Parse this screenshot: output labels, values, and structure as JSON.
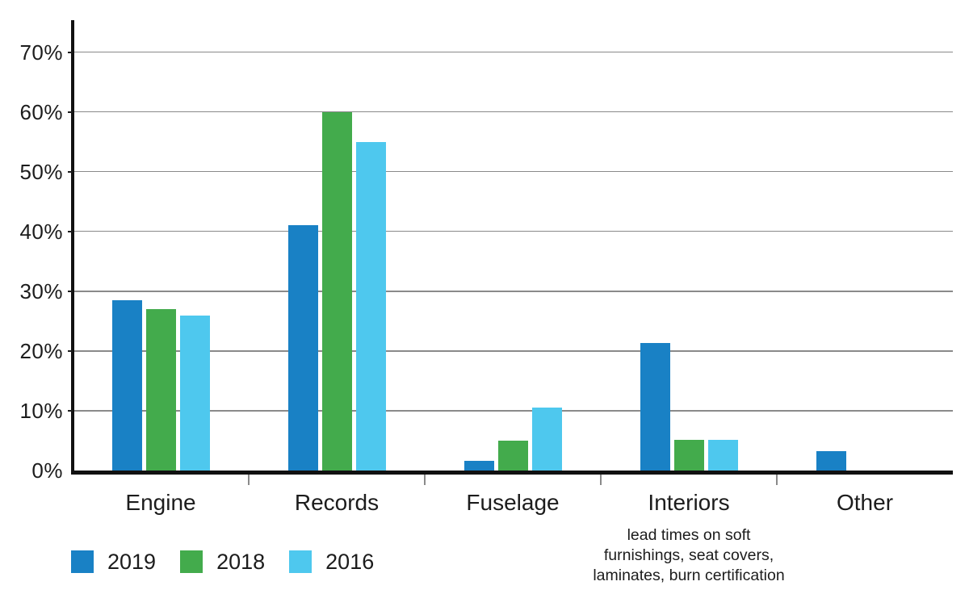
{
  "chart_data": {
    "type": "bar",
    "title": "",
    "xlabel": "",
    "ylabel": "",
    "categories": [
      "Engine",
      "Records",
      "Fuselage",
      "Interiors",
      "Other"
    ],
    "series": [
      {
        "name": "2019",
        "color": "#1981c5",
        "values": [
          28.5,
          41,
          1.6,
          21.3,
          3.3
        ]
      },
      {
        "name": "2018",
        "color": "#43ab4c",
        "values": [
          27,
          60,
          5,
          5.2,
          0
        ]
      },
      {
        "name": "2016",
        "color": "#4ec8ee",
        "values": [
          26,
          55,
          10.5,
          5.2,
          0
        ]
      }
    ],
    "yticks": [
      {
        "value": 70,
        "label": "70%"
      },
      {
        "value": 60,
        "label": "60%"
      },
      {
        "value": 50,
        "label": "50%"
      },
      {
        "value": 40,
        "label": "40%"
      },
      {
        "value": 30,
        "label": "30%"
      },
      {
        "value": 20,
        "label": "20%"
      },
      {
        "value": 10,
        "label": "10%"
      },
      {
        "value": 0,
        "label": "0%"
      }
    ],
    "ylim": [
      0,
      75
    ],
    "grid": "horizontal",
    "legend_position": "bottom-left",
    "category_note": {
      "category_index": 3,
      "lines": [
        "lead times on soft",
        "furnishings, seat covers,",
        "laminates, burn certification"
      ]
    },
    "colors": {
      "axis": "#111111",
      "gridline": "#8a8a8a",
      "boundary_tick": "#8a8a8a",
      "text": "#1c1c1c"
    }
  }
}
